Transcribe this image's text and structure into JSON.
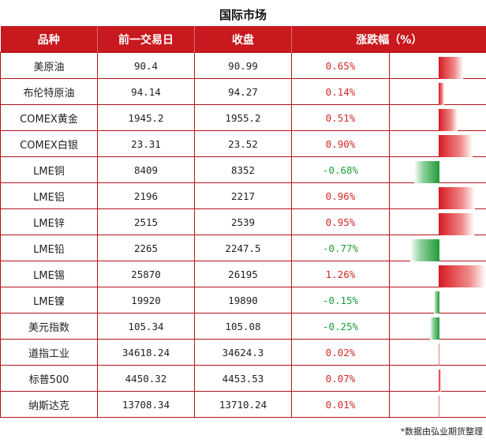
{
  "title": "国际市场",
  "headers": [
    "品种",
    "前一交易日",
    "收盘",
    "涨跌幅（%）"
  ],
  "rows": [
    {
      "name": "美原油",
      "prev": "90.4",
      "close": "90.99",
      "change": "0.65%",
      "pct": 0.65
    },
    {
      "name": "布伦特原油",
      "prev": "94.14",
      "close": "94.27",
      "change": "0.14%",
      "pct": 0.14
    },
    {
      "name": "COMEX黄金",
      "prev": "1945.2",
      "close": "1955.2",
      "change": "0.51%",
      "pct": 0.51
    },
    {
      "name": "COMEX白银",
      "prev": "23.31",
      "close": "23.52",
      "change": "0.90%",
      "pct": 0.9
    },
    {
      "name": "LME铜",
      "prev": "8409",
      "close": "8352",
      "change": "-0.68%",
      "pct": -0.68
    },
    {
      "name": "LME铝",
      "prev": "2196",
      "close": "2217",
      "change": "0.96%",
      "pct": 0.96
    },
    {
      "name": "LME锌",
      "prev": "2515",
      "close": "2539",
      "change": "0.95%",
      "pct": 0.95
    },
    {
      "name": "LME铅",
      "prev": "2265",
      "close": "2247.5",
      "change": "-0.77%",
      "pct": -0.77
    },
    {
      "name": "LME锡",
      "prev": "25870",
      "close": "26195",
      "change": "1.26%",
      "pct": 1.26
    },
    {
      "name": "LME镍",
      "prev": "19920",
      "close": "19890",
      "change": "-0.15%",
      "pct": -0.15
    },
    {
      "name": "美元指数",
      "prev": "105.34",
      "close": "105.08",
      "change": "-0.25%",
      "pct": -0.25
    },
    {
      "name": "道指工业",
      "prev": "34618.24",
      "close": "34624.3",
      "change": "0.02%",
      "pct": 0.02
    },
    {
      "name": "标普500",
      "prev": "4450.32",
      "close": "4453.53",
      "change": "0.07%",
      "pct": 0.07
    },
    {
      "name": "纳斯达克",
      "prev": "13708.34",
      "close": "13710.24",
      "change": "0.01%",
      "pct": 0.01
    }
  ],
  "colors": {
    "header_bg": "#c8191e",
    "positive": "#d42a2a",
    "negative": "#1e9e3a"
  },
  "footnote": "*数据由弘业期货整理"
}
